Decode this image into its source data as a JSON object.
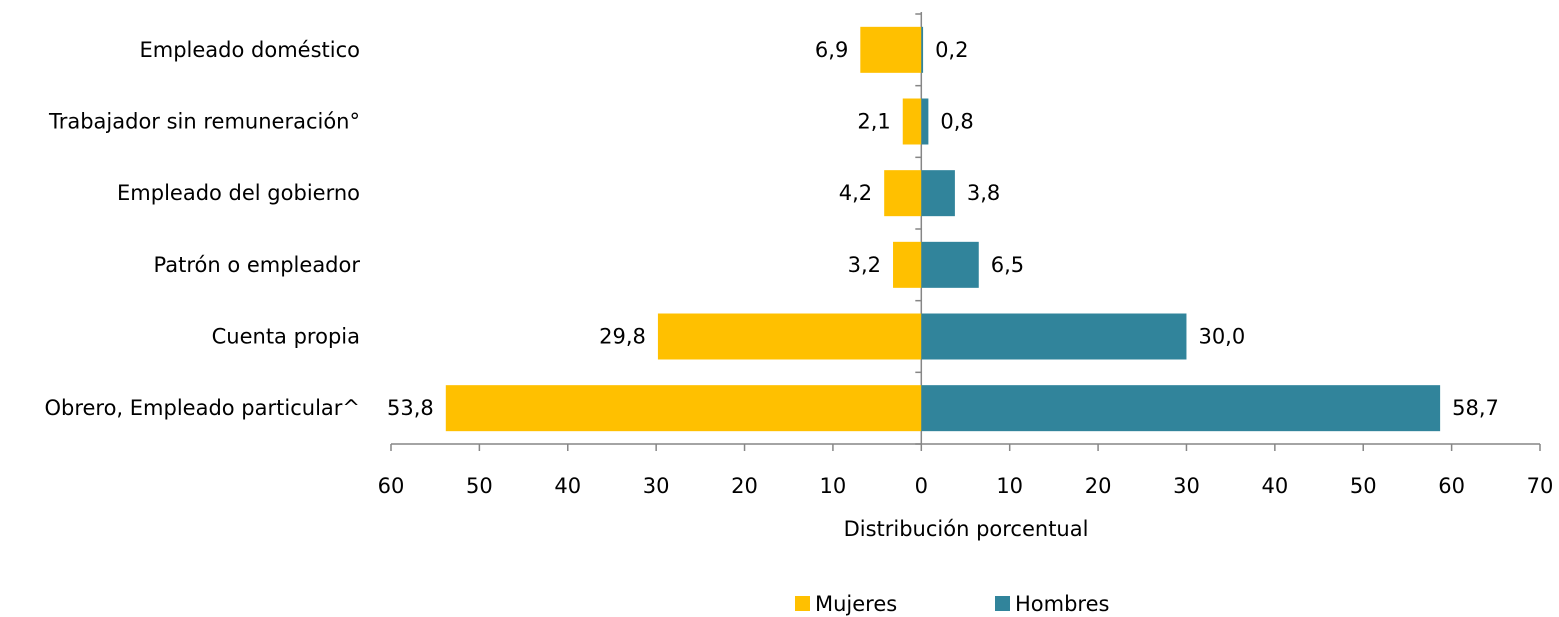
{
  "chart_data": {
    "type": "bar",
    "orientation": "horizontal",
    "layout": "diverging",
    "categories": [
      "Empleado doméstico",
      "Trabajador sin remuneración°",
      "Empleado del gobierno",
      "Patrón o empleador",
      "Cuenta propia",
      "Obrero, Empleado particular^"
    ],
    "series": [
      {
        "name": "Mujeres",
        "color": "#ffc000",
        "values": [
          -6.9,
          -2.1,
          -4.2,
          -3.2,
          -29.8,
          -53.8
        ],
        "value_labels": [
          "6,9",
          "2,1",
          "4,2",
          "3,2",
          "29,8",
          "53,8"
        ]
      },
      {
        "name": "Hombres",
        "color": "#31849b",
        "values": [
          0.2,
          0.8,
          3.8,
          6.5,
          30.0,
          58.7
        ],
        "value_labels": [
          "0,2",
          "0,8",
          "3,8",
          "6,5",
          "30,0",
          "58,7"
        ]
      }
    ],
    "xlabel": "Distribución porcentual",
    "xlim": [
      -60,
      70
    ],
    "xticks": [
      {
        "value": -60,
        "label": "60"
      },
      {
        "value": -50,
        "label": "50"
      },
      {
        "value": -40,
        "label": "40"
      },
      {
        "value": -30,
        "label": "30"
      },
      {
        "value": -20,
        "label": "20"
      },
      {
        "value": -10,
        "label": "10"
      },
      0,
      10,
      20,
      30,
      40,
      50,
      60,
      70
    ],
    "legend": "bottom"
  }
}
